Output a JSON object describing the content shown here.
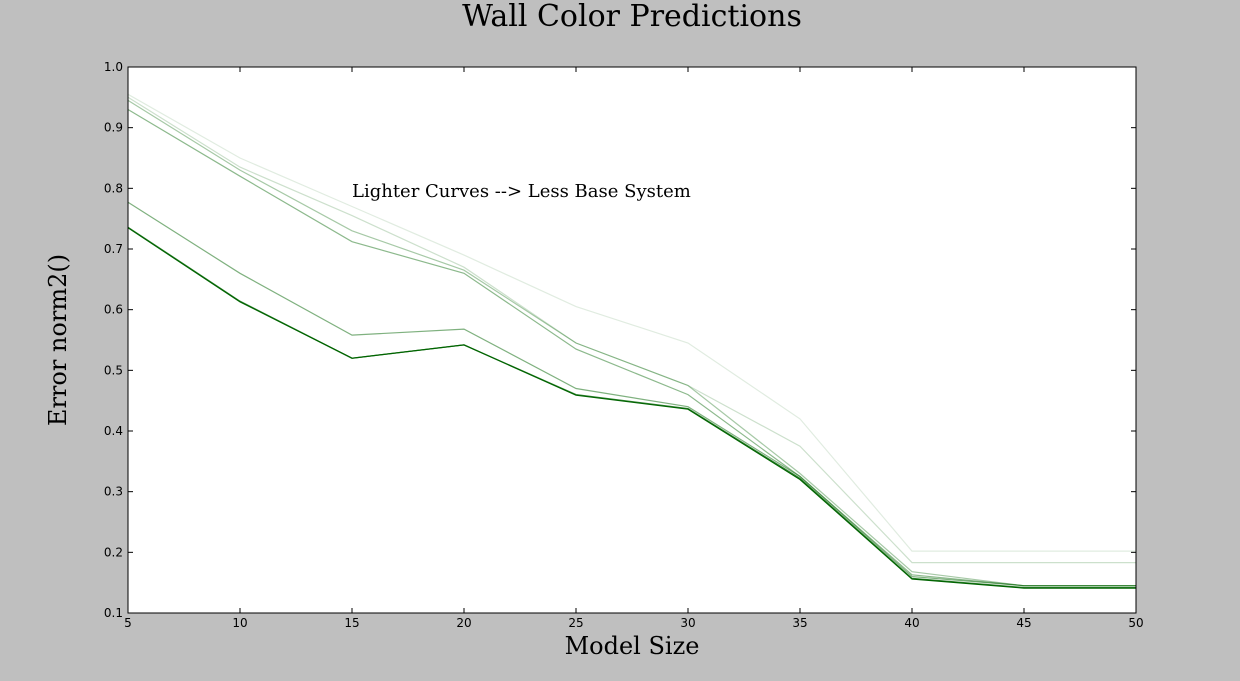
{
  "chart_data": {
    "type": "line",
    "title": "Wall Color Predictions",
    "xlabel": "Model Size",
    "ylabel": "Error norm2()",
    "annotation": "Lighter Curves --> Less Base System",
    "xlim": [
      5,
      50
    ],
    "ylim": [
      0.1,
      1.0
    ],
    "x_ticks": [
      "5",
      "10",
      "15",
      "20",
      "25",
      "30",
      "35",
      "40",
      "45",
      "50"
    ],
    "y_ticks": [
      "0.1",
      "0.2",
      "0.3",
      "0.4",
      "0.5",
      "0.6",
      "0.7",
      "0.8",
      "0.9",
      "1.0"
    ],
    "grid": false,
    "x": [
      5,
      10,
      15,
      20,
      25,
      30,
      35,
      40,
      45,
      50
    ],
    "series_color": "#006400",
    "series": [
      {
        "opacity": 0.12,
        "values": [
          0.955,
          0.85,
          0.77,
          0.69,
          0.605,
          0.545,
          0.42,
          0.202,
          0.202,
          0.202
        ]
      },
      {
        "opacity": 0.2,
        "values": [
          0.95,
          0.835,
          0.755,
          0.67,
          0.545,
          0.475,
          0.375,
          0.183,
          0.183,
          0.183
        ]
      },
      {
        "opacity": 0.35,
        "values": [
          0.945,
          0.83,
          0.73,
          0.665,
          0.545,
          0.475,
          0.33,
          0.168,
          0.145,
          0.145
        ]
      },
      {
        "opacity": 0.45,
        "values": [
          0.93,
          0.82,
          0.712,
          0.66,
          0.535,
          0.46,
          0.325,
          0.163,
          0.145,
          0.145
        ]
      },
      {
        "opacity": 0.5,
        "values": [
          0.777,
          0.66,
          0.558,
          0.568,
          0.47,
          0.44,
          0.325,
          0.16,
          0.145,
          0.145
        ]
      },
      {
        "opacity": 0.8,
        "values": [
          0.736,
          0.614,
          0.52,
          0.542,
          0.46,
          0.437,
          0.322,
          0.157,
          0.142,
          0.142
        ]
      },
      {
        "opacity": 1.0,
        "values": [
          0.735,
          0.613,
          0.52,
          0.542,
          0.459,
          0.436,
          0.32,
          0.156,
          0.141,
          0.141
        ]
      }
    ]
  }
}
